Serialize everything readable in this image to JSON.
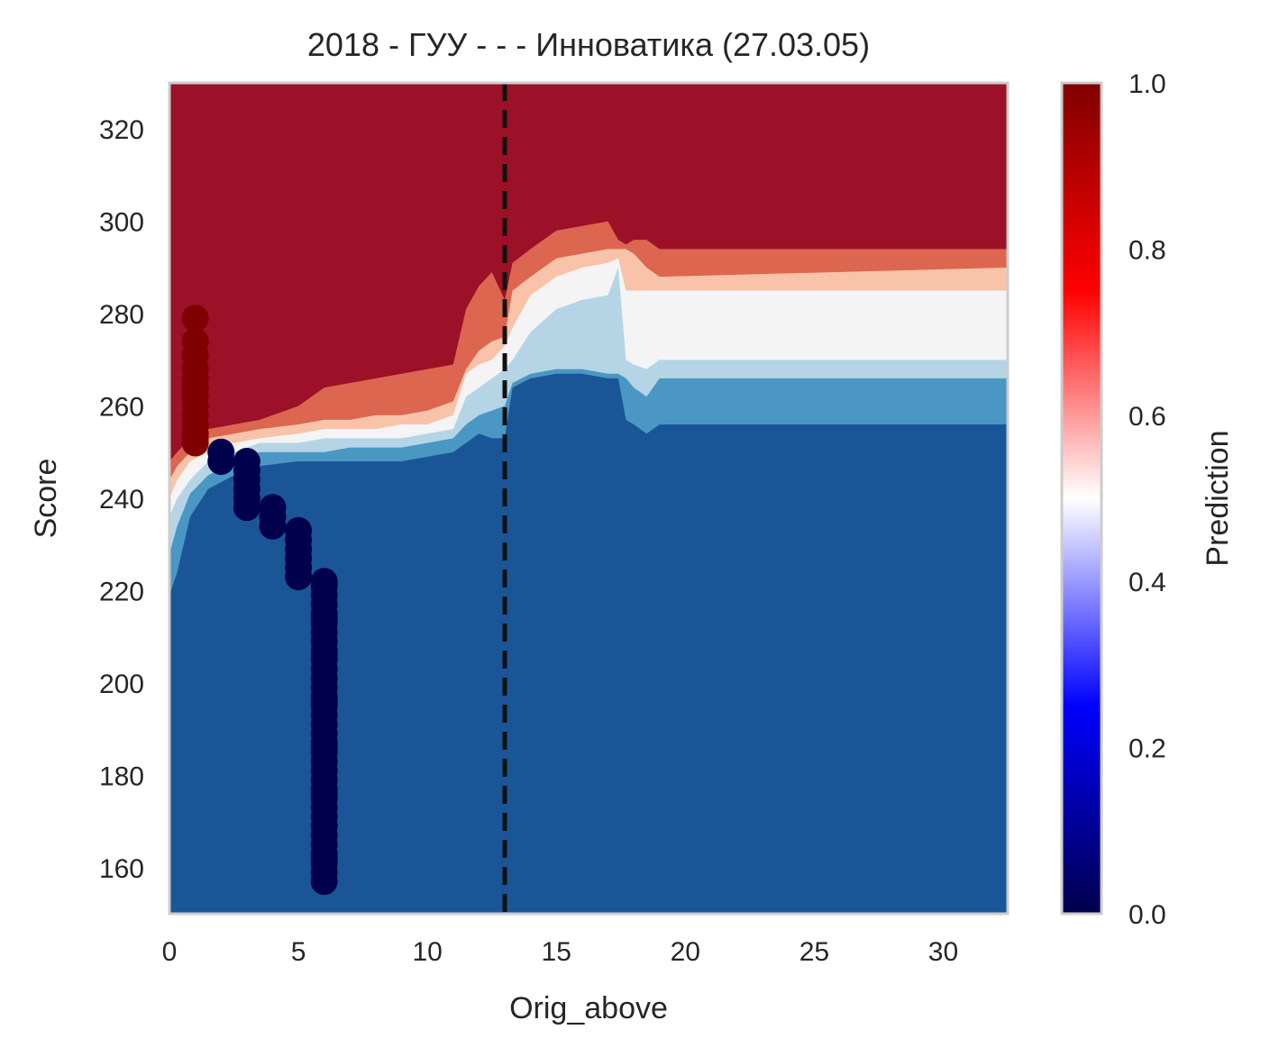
{
  "chart_data": {
    "type": "contour",
    "title": "2018 - ГУУ - - - Инноватика (27.03.05)",
    "xlabel": "Orig_above",
    "ylabel": "Score",
    "xlim": [
      0,
      32.5
    ],
    "ylim": [
      150,
      330
    ],
    "xticks": [
      "0",
      "5",
      "10",
      "15",
      "20",
      "25",
      "30"
    ],
    "yticks": [
      "160",
      "180",
      "200",
      "220",
      "240",
      "260",
      "280",
      "300",
      "320"
    ],
    "threshold_line": {
      "x": 13,
      "style": "dashed",
      "color": "#111111"
    },
    "contour_levels": [
      0,
      0.2,
      0.4,
      0.5,
      0.6,
      0.8,
      1.0
    ],
    "contour_colors": [
      "#1a5697",
      "#4a97c4",
      "#b5d5e7",
      "#f4f4f4",
      "#f8c3a8",
      "#dc6650",
      "#9c1028"
    ],
    "contour_boundaries": [
      {
        "name": "p0.2",
        "x": [
          0,
          0.3,
          0.8,
          1.5,
          2.5,
          3.5,
          5,
          6,
          7,
          8,
          9,
          10,
          11,
          11.5,
          12,
          12.5,
          13,
          13.3,
          14,
          15,
          16,
          17,
          17.4,
          17.7,
          18,
          18.5,
          19,
          32.5
        ],
        "y": [
          219,
          224,
          236,
          242,
          245,
          247,
          248,
          248,
          248,
          248,
          248,
          249,
          250,
          252,
          254,
          253,
          253,
          264,
          266,
          267,
          267,
          266,
          266,
          257,
          256,
          254,
          256,
          256
        ]
      },
      {
        "name": "p0.4",
        "x": [
          0,
          0.3,
          0.8,
          1.5,
          2.5,
          3.5,
          5,
          6,
          7,
          8,
          9,
          10,
          11,
          11.5,
          12,
          12.5,
          13,
          13.3,
          14,
          15,
          16,
          17,
          17.4,
          17.7,
          18,
          18.5,
          19,
          32.5
        ],
        "y": [
          228,
          234,
          241,
          245,
          248,
          250,
          250,
          250,
          251,
          251,
          251,
          252,
          253,
          256,
          258,
          259,
          260,
          265,
          267,
          268,
          268,
          267,
          267,
          266,
          264,
          262,
          266,
          266
        ]
      },
      {
        "name": "p0.5",
        "x": [
          0,
          0.3,
          0.8,
          1.5,
          2.5,
          3.5,
          5,
          6,
          7,
          8,
          9,
          10,
          11,
          11.5,
          12,
          12.5,
          13,
          13.3,
          14,
          15,
          16,
          17,
          17.4,
          17.7,
          18,
          18.5,
          19,
          32.5
        ],
        "y": [
          236,
          240,
          244,
          248,
          250,
          252,
          252,
          253,
          253,
          253,
          253,
          254,
          255,
          262,
          264,
          266,
          268,
          270,
          276,
          281,
          283,
          284,
          290,
          270,
          269,
          268,
          270,
          270
        ]
      },
      {
        "name": "p0.6",
        "x": [
          0,
          0.3,
          0.8,
          1.5,
          2.5,
          3.5,
          5,
          6,
          7,
          8,
          9,
          10,
          11,
          11.5,
          12,
          12.5,
          13,
          13.3,
          14,
          15,
          16,
          17,
          17.4,
          17.7,
          18,
          18.5,
          19,
          32.5
        ],
        "y": [
          240,
          244,
          248,
          250,
          252,
          253,
          254,
          255,
          255,
          255,
          256,
          256,
          258,
          267,
          269,
          270,
          273,
          277,
          284,
          288,
          290,
          291,
          292,
          285,
          285,
          285,
          285,
          285
        ]
      },
      {
        "name": "p0.8",
        "x": [
          0,
          0.3,
          0.8,
          1.5,
          2.5,
          3.5,
          5,
          6,
          7,
          8,
          9,
          10,
          11,
          11.5,
          12,
          12.5,
          13,
          13.3,
          14,
          15,
          16,
          17,
          17.4,
          17.7,
          18,
          18.5,
          19,
          32.5
        ],
        "y": [
          244,
          247,
          250,
          253,
          254,
          255,
          256,
          257,
          257,
          258,
          258,
          259,
          261,
          268,
          272,
          274,
          275,
          285,
          288,
          292,
          293,
          294,
          294,
          294,
          293,
          290,
          288,
          290
        ]
      },
      {
        "name": "p1.0",
        "x": [
          0,
          0.3,
          0.8,
          1.5,
          2.5,
          3.5,
          5,
          6,
          7,
          8,
          9,
          10,
          11,
          11.5,
          12,
          12.5,
          13,
          13.3,
          14,
          15,
          16,
          17,
          17.4,
          17.7,
          18,
          18.5,
          19,
          32.5
        ],
        "y": [
          248,
          250,
          253,
          255,
          256,
          257,
          260,
          264,
          265,
          266,
          267,
          268,
          269,
          281,
          286,
          289,
          283,
          291,
          294,
          298,
          299,
          300,
          296,
          295,
          296,
          296,
          294,
          294
        ]
      }
    ],
    "scatter": [
      {
        "name": "class-1",
        "color": "#800000",
        "x": [
          1,
          1,
          1,
          1,
          1,
          1,
          1,
          1,
          1,
          1,
          1,
          1,
          1
        ],
        "y": [
          279,
          274,
          271,
          268,
          266,
          264,
          262,
          260,
          258,
          256,
          254,
          253,
          252
        ]
      },
      {
        "name": "class-0",
        "color": "#00004c",
        "x": [
          2,
          2,
          3,
          3,
          3,
          3,
          3,
          3,
          4,
          4,
          4,
          5,
          5,
          5,
          5,
          5,
          5,
          6,
          6,
          6,
          6,
          6,
          6,
          6,
          6,
          6,
          6,
          6,
          6,
          6,
          6,
          6,
          6,
          6,
          6,
          6,
          6,
          6,
          6,
          6,
          6,
          6,
          6,
          6,
          6,
          6,
          6,
          6,
          6,
          6,
          6,
          6,
          6,
          6,
          6,
          6,
          6
        ],
        "y": [
          250,
          248,
          248,
          246,
          244,
          242,
          240,
          238,
          238,
          236,
          234,
          233,
          231,
          229,
          227,
          225,
          223,
          222,
          219,
          217,
          215,
          213,
          211,
          209,
          207,
          205,
          203,
          201,
          199,
          197,
          195,
          193,
          191,
          189,
          187,
          185,
          183,
          181,
          179,
          177,
          175,
          173,
          171,
          169,
          167,
          165,
          163,
          161,
          159,
          157,
          221,
          214,
          206,
          196,
          186,
          176,
          162
        ]
      }
    ],
    "colorbar": {
      "label": "Prediction",
      "ticks": [
        "0.0",
        "0.2",
        "0.4",
        "0.6",
        "0.8",
        "1.0"
      ],
      "colormap": [
        "#00004c",
        "#0000ff",
        "#ffffff",
        "#ff0000",
        "#800000"
      ]
    }
  }
}
